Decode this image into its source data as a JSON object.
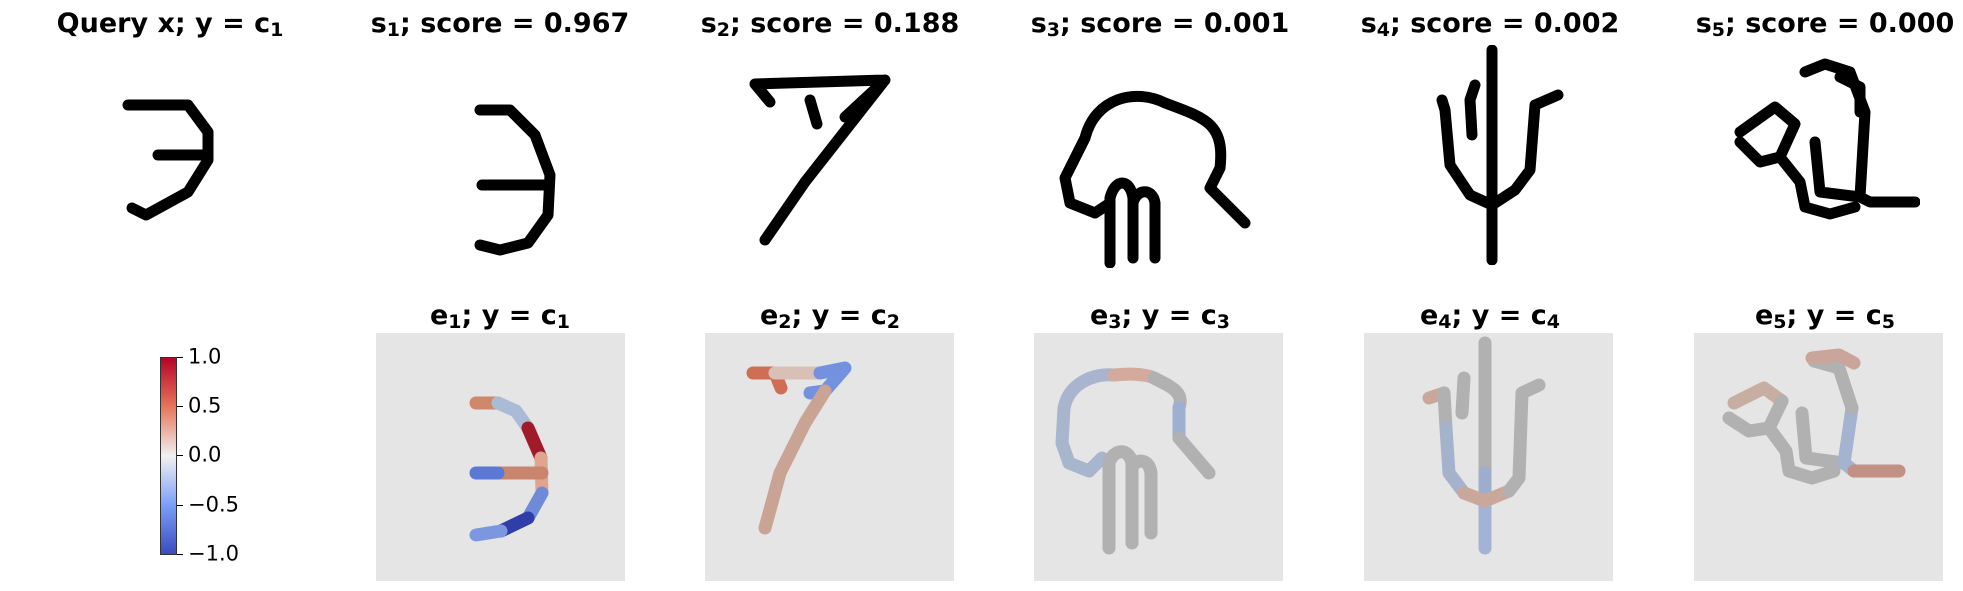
{
  "titles": {
    "query": {
      "text": "Query x; y = c",
      "sub": "1"
    },
    "samples": [
      {
        "prefix": "s",
        "sub": "1",
        "text": "; score = 0.967"
      },
      {
        "prefix": "s",
        "sub": "2",
        "text": "; score = 0.188"
      },
      {
        "prefix": "s",
        "sub": "3",
        "text": "; score = 0.001"
      },
      {
        "prefix": "s",
        "sub": "4",
        "text": "; score = 0.002"
      },
      {
        "prefix": "s",
        "sub": "5",
        "text": "; score = 0.000"
      }
    ],
    "explanations": [
      {
        "prefix": "e",
        "sub": "1",
        "mid": "; y = c",
        "sub2": "1"
      },
      {
        "prefix": "e",
        "sub": "2",
        "mid": "; y = c",
        "sub2": "2"
      },
      {
        "prefix": "e",
        "sub": "3",
        "mid": "; y = c",
        "sub2": "3"
      },
      {
        "prefix": "e",
        "sub": "4",
        "mid": "; y = c",
        "sub2": "4"
      },
      {
        "prefix": "e",
        "sub": "5",
        "mid": "; y = c",
        "sub2": "5"
      }
    ]
  },
  "colorbar": {
    "ticks": [
      "1.0",
      "0.5",
      "0.0",
      "−0.5",
      "−1.0"
    ],
    "colors": {
      "max": "#b40426",
      "mid": "#dddddd",
      "min": "#3b4cc0"
    }
  }
}
